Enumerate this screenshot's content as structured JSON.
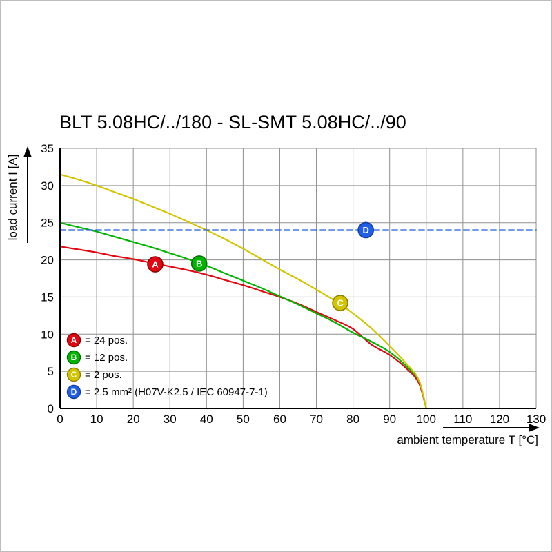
{
  "page": {
    "title": "BLT 5.08HC/../180 - SL-SMT 5.08HC/../90"
  },
  "chart_data": {
    "type": "line",
    "title": "BLT 5.08HC/../180 - SL-SMT 5.08HC/../90",
    "xlabel": "ambient temperature T [°C]",
    "ylabel": "load current I [A]",
    "xlim": [
      0,
      130
    ],
    "ylim": [
      0,
      35
    ],
    "xticks": [
      0,
      10,
      20,
      30,
      40,
      50,
      60,
      70,
      80,
      90,
      100,
      110,
      120,
      130
    ],
    "yticks": [
      0,
      5,
      10,
      15,
      20,
      25,
      30,
      35
    ],
    "grid": true,
    "grid_color": "#8f8f8f",
    "axis_color": "#000000",
    "legend_position": "lower-left",
    "series": [
      {
        "id": "A",
        "legend": "= 24 pos.",
        "color": "#e30613",
        "edge": "#8c0000",
        "style": "solid",
        "x": [
          0,
          5,
          10,
          15,
          20,
          25,
          30,
          35,
          40,
          45,
          50,
          55,
          60,
          65,
          70,
          75,
          80,
          85,
          90,
          95,
          98,
          100
        ],
        "y": [
          21.8,
          21.4,
          21.0,
          20.5,
          20.1,
          19.6,
          19.1,
          18.6,
          18.0,
          17.3,
          16.6,
          15.8,
          15.0,
          14.1,
          13.0,
          11.9,
          10.7,
          8.6,
          7.2,
          5.2,
          3.4,
          0
        ],
        "marker": {
          "x": 26,
          "y": 19.4
        }
      },
      {
        "id": "B",
        "legend": "= 12 pos.",
        "color": "#00b400",
        "edge": "#006e00",
        "style": "solid",
        "x": [
          0,
          5,
          10,
          15,
          20,
          25,
          30,
          35,
          40,
          45,
          50,
          55,
          60,
          65,
          70,
          75,
          80,
          85,
          90,
          95,
          98,
          100
        ],
        "y": [
          25.0,
          24.4,
          23.8,
          23.1,
          22.4,
          21.7,
          20.9,
          20.1,
          19.2,
          18.2,
          17.2,
          16.2,
          15.1,
          14.0,
          12.8,
          11.6,
          10.2,
          9.0,
          7.6,
          5.5,
          3.7,
          0
        ],
        "marker": {
          "x": 38,
          "y": 19.5
        }
      },
      {
        "id": "C",
        "legend": "= 2 pos.",
        "color": "#d2c500",
        "edge": "#8f7f00",
        "style": "solid",
        "x": [
          0,
          5,
          10,
          15,
          20,
          25,
          30,
          35,
          40,
          45,
          50,
          55,
          60,
          65,
          70,
          75,
          80,
          85,
          90,
          95,
          98,
          100
        ],
        "y": [
          31.5,
          30.8,
          30.0,
          29.1,
          28.2,
          27.2,
          26.2,
          25.1,
          24.0,
          22.8,
          21.5,
          20.1,
          18.7,
          17.4,
          16.0,
          14.5,
          12.8,
          10.8,
          8.4,
          5.8,
          3.8,
          0
        ],
        "marker": {
          "x": 76.5,
          "y": 14.2
        }
      },
      {
        "id": "D",
        "legend": "= 2.5 mm² (H07V-K2.5 / IEC 60947-7-1)",
        "color": "#1f5fe8",
        "edge": "#123c9e",
        "style": "dashed",
        "x": [
          0,
          130
        ],
        "y": [
          24,
          24
        ],
        "marker": {
          "x": 83.5,
          "y": 24
        }
      }
    ]
  }
}
